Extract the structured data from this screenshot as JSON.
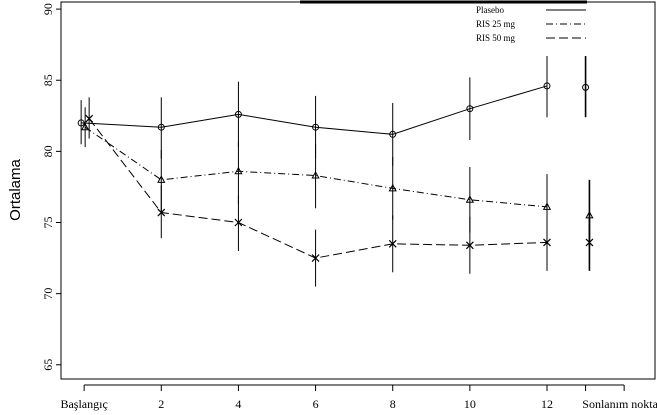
{
  "chart_data": {
    "type": "line",
    "title": "",
    "xlabel": "",
    "ylabel": "Ortalama",
    "ylim": [
      64,
      90.5
    ],
    "xlim": [
      -0.6,
      14.8
    ],
    "yticks": [
      65,
      70,
      75,
      80,
      85,
      90
    ],
    "xticks": [
      {
        "x": 0,
        "label": "Başlangıç"
      },
      {
        "x": 2,
        "label": "2"
      },
      {
        "x": 4,
        "label": "4"
      },
      {
        "x": 6,
        "label": "6"
      },
      {
        "x": 8,
        "label": "8"
      },
      {
        "x": 10,
        "label": "10"
      },
      {
        "x": 12,
        "label": "12"
      },
      {
        "x": 13,
        "label": ""
      },
      {
        "x": 14,
        "label": "Sonlanım noktası"
      }
    ],
    "grid": false,
    "legend_position": "top-right",
    "series": [
      {
        "name": "Plasebo",
        "style": "solid",
        "marker": "circle",
        "x": [
          0,
          2,
          4,
          6,
          8,
          10,
          12
        ],
        "y": [
          82.0,
          81.7,
          82.6,
          81.7,
          81.2,
          83.0,
          84.6
        ],
        "err_low": [
          80.5,
          79.5,
          80.3,
          79.5,
          79.0,
          80.8,
          82.4
        ],
        "err_high": [
          83.6,
          83.8,
          84.9,
          83.9,
          83.4,
          85.2,
          86.7
        ],
        "endpoint": {
          "x": 13,
          "y": 84.5,
          "low": 82.4,
          "high": 86.7
        }
      },
      {
        "name": "RIS 25 mg",
        "style": "dashdot",
        "marker": "triangle",
        "x": [
          0,
          2,
          4,
          6,
          8,
          10,
          12
        ],
        "y": [
          81.7,
          78.0,
          78.6,
          78.3,
          77.4,
          76.6,
          76.1
        ],
        "err_low": [
          80.3,
          75.8,
          76.3,
          76.0,
          75.2,
          74.3,
          73.8
        ],
        "err_high": [
          83.1,
          80.1,
          80.7,
          80.5,
          79.6,
          78.9,
          78.4
        ],
        "endpoint": {
          "x": 13.1,
          "y": 75.5,
          "low": 73.3,
          "high": 78.0
        }
      },
      {
        "name": "RIS 50 mg",
        "style": "dashed",
        "marker": "cross",
        "x": [
          0,
          2,
          4,
          6,
          8,
          10,
          12
        ],
        "y": [
          82.3,
          75.7,
          75.0,
          72.5,
          73.5,
          73.4,
          73.6
        ],
        "err_low": [
          80.9,
          73.9,
          73.0,
          70.5,
          71.5,
          71.4,
          71.6
        ],
        "err_high": [
          83.8,
          77.6,
          76.9,
          74.5,
          75.5,
          75.4,
          75.6
        ],
        "endpoint": {
          "x": 13.1,
          "y": 73.6,
          "low": 71.6,
          "high": 75.6
        }
      }
    ]
  }
}
